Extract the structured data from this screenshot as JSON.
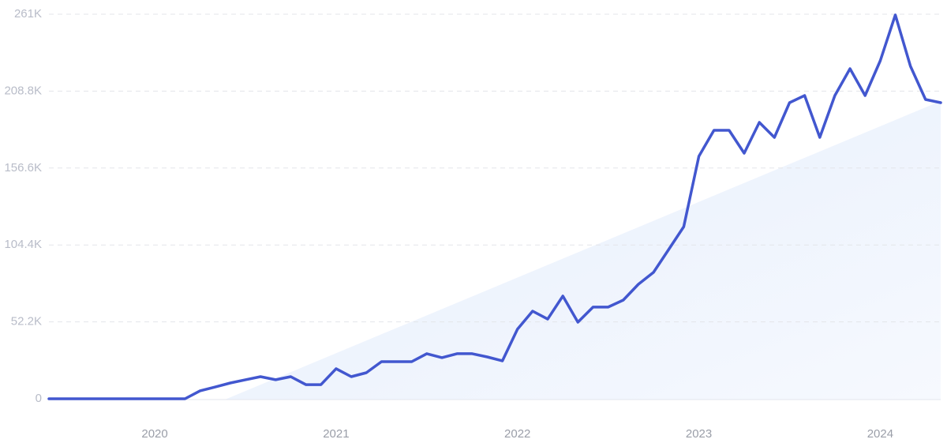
{
  "chart_data": {
    "type": "line",
    "categories": [
      null,
      null,
      null,
      null,
      null,
      null,
      null,
      "2020",
      null,
      null,
      null,
      null,
      null,
      null,
      null,
      null,
      null,
      null,
      null,
      "2021",
      null,
      null,
      null,
      null,
      null,
      null,
      null,
      null,
      null,
      null,
      null,
      "2022",
      null,
      null,
      null,
      null,
      null,
      null,
      null,
      null,
      null,
      null,
      null,
      "2023",
      null,
      null,
      null,
      null,
      null,
      null,
      null,
      null,
      null,
      null,
      null,
      "2024",
      null,
      null,
      null,
      null
    ],
    "series": [
      {
        "color": "#4257cf",
        "values": [
          0,
          0,
          0,
          0,
          0,
          0,
          0,
          0,
          0,
          0,
          5400,
          8000,
          10700,
          12900,
          15000,
          12900,
          15000,
          9600,
          9600,
          20400,
          15000,
          17700,
          25200,
          25200,
          25200,
          30600,
          27900,
          30600,
          30600,
          28400,
          25700,
          47200,
          59500,
          54100,
          69700,
          52000,
          62200,
          62200,
          67000,
          77700,
          85800,
          101300,
          116800,
          164600,
          182200,
          182200,
          166700,
          187600,
          177400,
          201000,
          205800,
          177400,
          205800,
          224000,
          205800,
          229400,
          260500,
          225700,
          203100,
          201000
        ]
      }
    ],
    "ylim": [
      0,
      261000
    ],
    "yticks": [
      0,
      {
        "value": 52200,
        "label": "52.2K"
      },
      {
        "value": 104400,
        "label": "104.4K"
      },
      {
        "value": 156600,
        "label": "156.6K"
      },
      {
        "value": 208800,
        "label": "208.8K"
      },
      {
        "value": 261000,
        "label": "261K"
      }
    ],
    "grid": true
  }
}
